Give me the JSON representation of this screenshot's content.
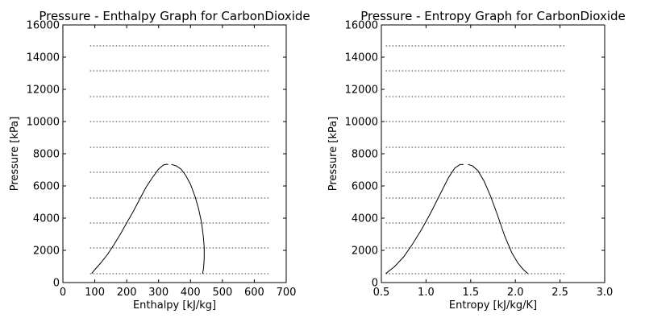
{
  "chart_data": [
    {
      "type": "line",
      "title": "Pressure - Enthalpy Graph for CarbonDioxide",
      "xlabel": "Enthalpy [kJ/kg]",
      "ylabel": "Pressure [kPa]",
      "xlim": [
        0,
        700
      ],
      "ylim": [
        0,
        16000
      ],
      "xticks": [
        "0",
        "100",
        "200",
        "300",
        "400",
        "500",
        "600",
        "700"
      ],
      "yticks": [
        "0",
        "2000",
        "4000",
        "6000",
        "8000",
        "10000",
        "12000",
        "14000",
        "16000"
      ],
      "grid": false,
      "isobars": {
        "style": "dotted",
        "color": "#808080",
        "x_range": [
          85,
          650
        ],
        "pressures": [
          550,
          2150,
          3700,
          5250,
          6850,
          8400,
          10000,
          11550,
          13150,
          14700
        ]
      },
      "series": [
        {
          "color": "#000000",
          "x": [
            90,
            100,
            120,
            140,
            160,
            180,
            200,
            220,
            240,
            260,
            280,
            300,
            315,
            325,
            330
          ],
          "y": [
            560,
            800,
            1250,
            1750,
            2350,
            3000,
            3700,
            4400,
            5150,
            5900,
            6500,
            7050,
            7300,
            7350,
            7340
          ]
        },
        {
          "color": "#000000",
          "x": [
            340,
            355,
            370,
            385,
            400,
            415,
            425,
            435,
            440,
            443,
            443,
            441,
            438
          ],
          "y": [
            7340,
            7250,
            7050,
            6650,
            6100,
            5300,
            4600,
            3700,
            2900,
            2200,
            1500,
            900,
            550
          ]
        }
      ]
    },
    {
      "type": "line",
      "title": "Pressure - Entropy Graph for CarbonDioxide",
      "xlabel": "Entropy [kJ/kg/K]",
      "ylabel": "Pressure [kPa]",
      "xlim": [
        0.5,
        3.0
      ],
      "ylim": [
        0,
        16000
      ],
      "xticks": [
        "0.5",
        "1.0",
        "1.5",
        "2.0",
        "2.5",
        "3.0"
      ],
      "yticks": [
        "0",
        "2000",
        "4000",
        "6000",
        "8000",
        "10000",
        "12000",
        "14000",
        "16000"
      ],
      "grid": false,
      "isobars": {
        "style": "dotted",
        "color": "#808080",
        "x_range": [
          0.55,
          2.57
        ],
        "pressures": [
          550,
          2150,
          3700,
          5250,
          6850,
          8400,
          10000,
          11550,
          13150,
          14700
        ]
      },
      "series": [
        {
          "color": "#000000",
          "x": [
            0.55,
            0.65,
            0.75,
            0.85,
            0.95,
            1.05,
            1.15,
            1.25,
            1.32,
            1.38,
            1.42
          ],
          "y": [
            560,
            1000,
            1600,
            2400,
            3300,
            4300,
            5400,
            6500,
            7100,
            7330,
            7340
          ]
        },
        {
          "color": "#000000",
          "x": [
            1.47,
            1.52,
            1.58,
            1.65,
            1.72,
            1.8,
            1.88,
            1.96,
            2.03,
            2.09,
            2.14
          ],
          "y": [
            7340,
            7250,
            6950,
            6300,
            5400,
            4200,
            2900,
            1850,
            1200,
            800,
            560
          ]
        }
      ]
    }
  ]
}
